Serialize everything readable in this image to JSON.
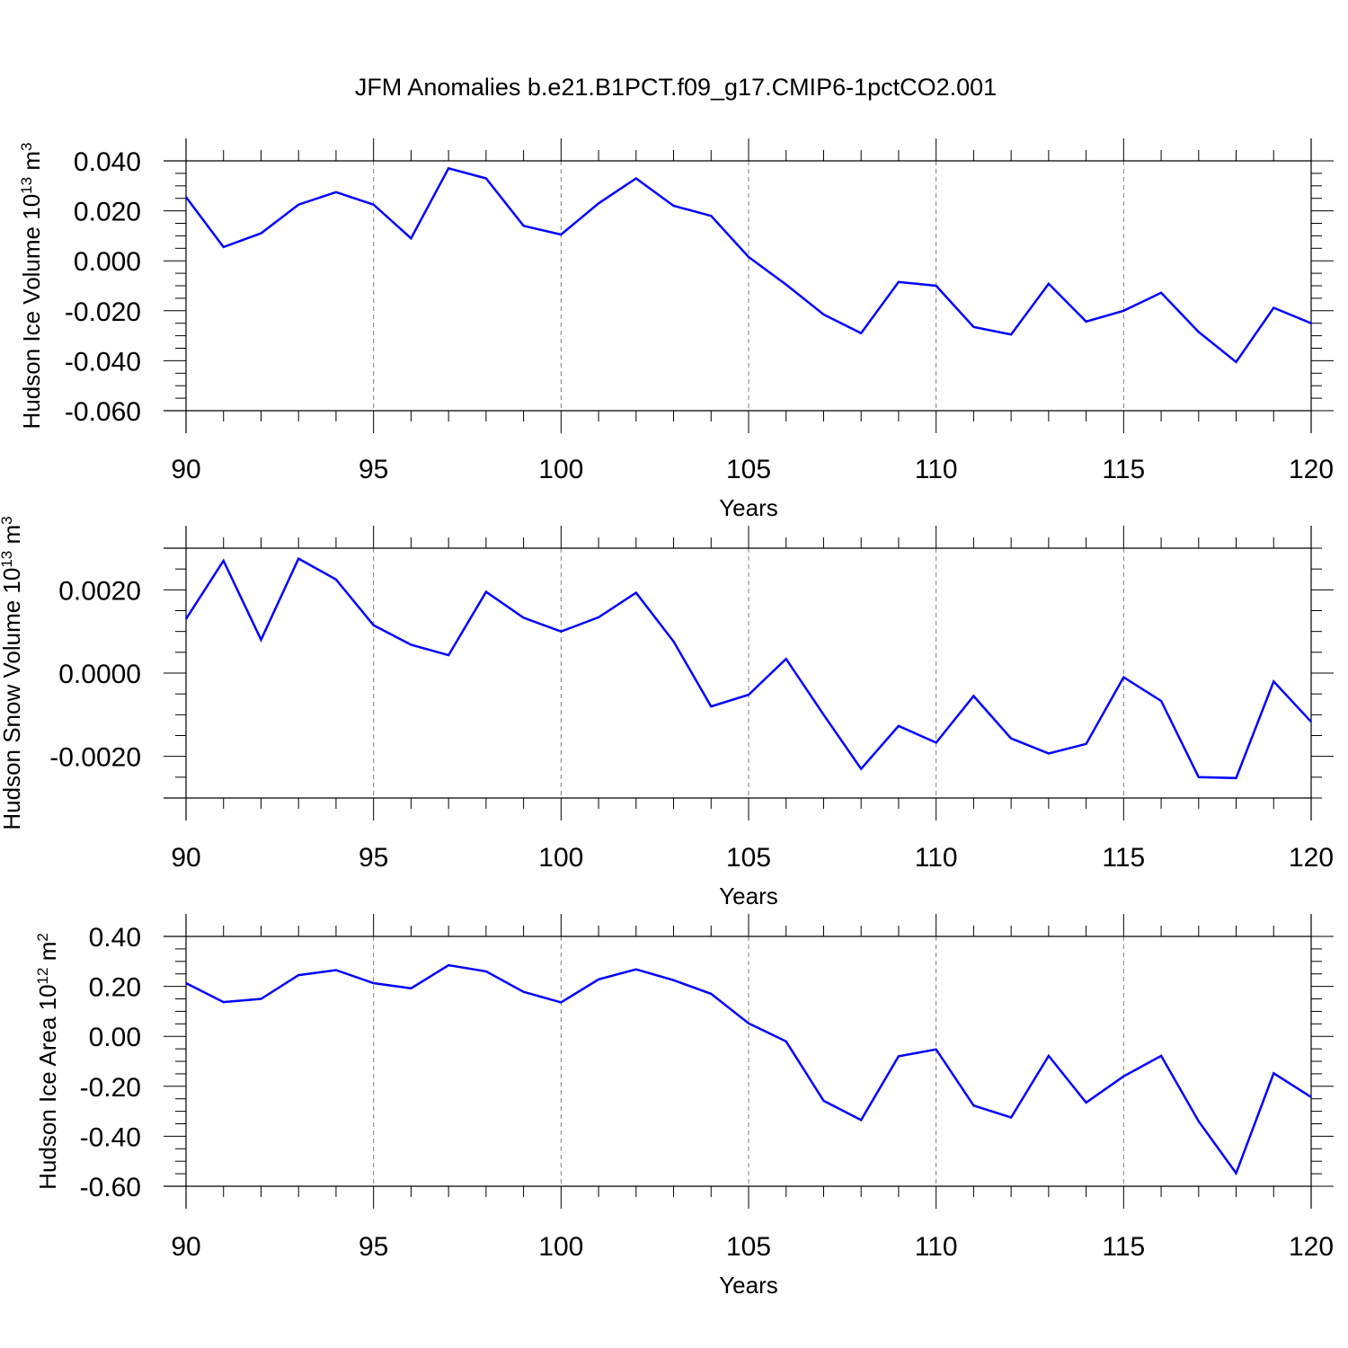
{
  "title": "JFM Anomalies b.e21.B1PCT.f09_g17.CMIP6-1pctCO2.001",
  "colors": {
    "line": "#0000ff",
    "axis": "#000000",
    "grid": "#7f7f7f"
  },
  "chart_data": [
    {
      "type": "line",
      "xlabel": "Years",
      "ylabel": "Hudson Ice Volume 10",
      "ylabel_exp": "13",
      "ylabel_unit": " m",
      "ylabel_unit_exp": "3",
      "xlim": [
        90,
        120
      ],
      "ylim": [
        -0.06,
        0.04
      ],
      "xticks": [
        90,
        95,
        100,
        105,
        110,
        115,
        120
      ],
      "xtick_labels": [
        "90",
        "95",
        "100",
        "105",
        "110",
        "115",
        "120"
      ],
      "yticks": [
        -0.06,
        -0.04,
        -0.02,
        0,
        0.02,
        0.04
      ],
      "ytick_labels": [
        "-0.060",
        "-0.040",
        "-0.020",
        "0.000",
        "0.020",
        "0.040"
      ],
      "grid": "vertical dashed at x ticks",
      "x": [
        90,
        91,
        92,
        93,
        94,
        95,
        96,
        97,
        98,
        99,
        100,
        101,
        102,
        103,
        104,
        105,
        106,
        107,
        108,
        109,
        110,
        111,
        112,
        113,
        114,
        115,
        116,
        117,
        118,
        119,
        120
      ],
      "values": [
        0.0255,
        0.0055,
        0.011,
        0.0225,
        0.0275,
        0.0225,
        0.009,
        0.037,
        0.033,
        0.014,
        0.0105,
        0.023,
        0.033,
        0.022,
        0.018,
        0.0015,
        -0.0095,
        -0.0215,
        -0.029,
        -0.0085,
        -0.01,
        -0.0265,
        -0.0295,
        -0.0092,
        -0.0243,
        -0.02,
        -0.0128,
        -0.0285,
        -0.0405,
        -0.0188,
        -0.025
      ]
    },
    {
      "type": "line",
      "xlabel": "Years",
      "ylabel": "Hudson Snow Volume 10",
      "ylabel_exp": "13",
      "ylabel_unit": " m",
      "ylabel_unit_exp": "3",
      "xlim": [
        90,
        120
      ],
      "ylim": [
        -0.003,
        0.003
      ],
      "xticks": [
        90,
        95,
        100,
        105,
        110,
        115,
        120
      ],
      "xtick_labels": [
        "90",
        "95",
        "100",
        "105",
        "110",
        "115",
        "120"
      ],
      "yticks": [
        -0.002,
        0,
        0.002
      ],
      "ytick_labels": [
        "-0.0020",
        "0.0000",
        "0.0020"
      ],
      "grid": "vertical dashed at x ticks",
      "x": [
        90,
        91,
        92,
        93,
        94,
        95,
        96,
        97,
        98,
        99,
        100,
        101,
        102,
        103,
        104,
        105,
        106,
        107,
        108,
        109,
        110,
        111,
        112,
        113,
        114,
        115,
        116,
        117,
        118,
        119,
        120
      ],
      "values": [
        0.0013,
        0.0027,
        0.0008,
        0.00275,
        0.00225,
        0.00115,
        0.00068,
        0.00043,
        0.00195,
        0.00133,
        0.001,
        0.00134,
        0.00193,
        0.00076,
        -0.0008,
        -0.00052,
        0.00034,
        -0.001,
        -0.0023,
        -0.00127,
        -0.00167,
        -0.00055,
        -0.00157,
        -0.00193,
        -0.0017,
        -0.0001,
        -0.00067,
        -0.0025,
        -0.00252,
        -0.0002,
        -0.00117
      ]
    },
    {
      "type": "line",
      "xlabel": "Years",
      "ylabel": "Hudson Ice Area 10",
      "ylabel_exp": "12",
      "ylabel_unit": " m",
      "ylabel_unit_exp": "2",
      "xlim": [
        90,
        120
      ],
      "ylim": [
        -0.6,
        0.4
      ],
      "xticks": [
        90,
        95,
        100,
        105,
        110,
        115,
        120
      ],
      "xtick_labels": [
        "90",
        "95",
        "100",
        "105",
        "110",
        "115",
        "120"
      ],
      "yticks": [
        -0.6,
        -0.4,
        -0.2,
        0,
        0.2,
        0.4
      ],
      "ytick_labels": [
        "-0.60",
        "-0.40",
        "-0.20",
        "0.00",
        "0.20",
        "0.40"
      ],
      "grid": "vertical dashed at x ticks",
      "x": [
        90,
        91,
        92,
        93,
        94,
        95,
        96,
        97,
        98,
        99,
        100,
        101,
        102,
        103,
        104,
        105,
        106,
        107,
        108,
        109,
        110,
        111,
        112,
        113,
        114,
        115,
        116,
        117,
        118,
        119,
        120
      ],
      "values": [
        0.213,
        0.137,
        0.15,
        0.245,
        0.265,
        0.213,
        0.192,
        0.285,
        0.26,
        0.178,
        0.136,
        0.228,
        0.268,
        0.225,
        0.17,
        0.052,
        -0.02,
        -0.258,
        -0.335,
        -0.08,
        -0.052,
        -0.277,
        -0.325,
        -0.078,
        -0.265,
        -0.16,
        -0.078,
        -0.34,
        -0.548,
        -0.148,
        -0.243
      ]
    }
  ]
}
